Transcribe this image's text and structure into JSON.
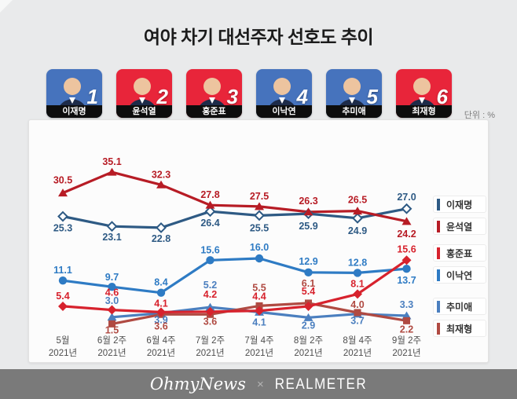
{
  "title": "여야 차기 대선주자 선호도 추이",
  "unit_label": "단위 : %",
  "candidates": [
    {
      "key": "lee-jaemyung",
      "rank": "1",
      "name": "이재명",
      "card_color": "#4673bd"
    },
    {
      "key": "yoon-seokyeol",
      "rank": "2",
      "name": "윤석열",
      "card_color": "#e8253a"
    },
    {
      "key": "hong-junpyo",
      "rank": "3",
      "name": "홍준표",
      "card_color": "#e8253a"
    },
    {
      "key": "lee-nakyeon",
      "rank": "4",
      "name": "이낙연",
      "card_color": "#4673bd"
    },
    {
      "key": "chu-miae",
      "rank": "5",
      "name": "추미애",
      "card_color": "#4673bd"
    },
    {
      "key": "choi-jaehyung",
      "rank": "6",
      "name": "최재형",
      "card_color": "#e8253a"
    }
  ],
  "chart_data": {
    "type": "line",
    "x": [
      "5월",
      "6월 2주",
      "6월 4주",
      "7월 2주",
      "7월 4주",
      "8월 2주",
      "8월 4주",
      "9월 2주"
    ],
    "x_year": "2021년",
    "ylabel": "%",
    "ylim": [
      0,
      38
    ],
    "grid": false,
    "legend_position": "right",
    "series": [
      {
        "key": "yoon-seokyeol",
        "name": "윤석열",
        "color": "#b71c25",
        "marker": "triangle",
        "values": [
          30.5,
          35.1,
          32.3,
          27.8,
          27.5,
          26.3,
          26.5,
          24.2
        ],
        "label_dy": [
          -16,
          -13,
          -13,
          -13,
          -13,
          -14,
          -14,
          16
        ]
      },
      {
        "key": "lee-jaemyung",
        "name": "이재명",
        "color": "#2e5a84",
        "marker": "diamond-open",
        "values": [
          25.3,
          23.1,
          22.8,
          26.4,
          25.5,
          25.9,
          24.9,
          27.0
        ],
        "label_dy": [
          15,
          14,
          14,
          15,
          16,
          16,
          16,
          -15
        ]
      },
      {
        "key": "lee-nakyeon",
        "name": "이낙연",
        "color": "#2e7bc4",
        "marker": "circle",
        "values": [
          11.1,
          9.7,
          8.4,
          15.6,
          16.0,
          12.9,
          12.8,
          13.7
        ],
        "label_dy": [
          -13,
          -12,
          -13,
          -13,
          -14,
          -14,
          -13,
          15
        ]
      },
      {
        "key": "hong-junpyo",
        "name": "홍준표",
        "color": "#d7222d",
        "marker": "diamond",
        "values": [
          5.4,
          4.6,
          4.1,
          4.2,
          4.4,
          5.4,
          8.1,
          15.6
        ],
        "label_dy": [
          -13,
          -22,
          -11,
          -22,
          -18,
          -19,
          -13,
          -14
        ]
      },
      {
        "key": "chu-miae",
        "name": "추미애",
        "color": "#4b7fbf",
        "marker": "triangle",
        "values": [
          null,
          3.0,
          3.9,
          5.2,
          4.1,
          2.9,
          3.7,
          3.3
        ],
        "label_dy": [
          null,
          -21,
          9,
          -28,
          13,
          10,
          9,
          -14
        ]
      },
      {
        "key": "choi-jaehyung",
        "name": "최재형",
        "color": "#b04a42",
        "marker": "square",
        "values": [
          null,
          1.5,
          3.6,
          3.6,
          5.5,
          6.1,
          4.0,
          2.2
        ],
        "label_dy": [
          null,
          8,
          15,
          9,
          -23,
          -25,
          -10,
          11
        ]
      }
    ],
    "legend_groups": [
      [
        "이재명",
        "윤석열"
      ],
      [
        "홍준표",
        "이낙연"
      ],
      [
        "추미애",
        "최재형"
      ]
    ]
  },
  "footer": {
    "brand1": "OhmyNews",
    "separator": "×",
    "brand2": "REALMETER"
  }
}
